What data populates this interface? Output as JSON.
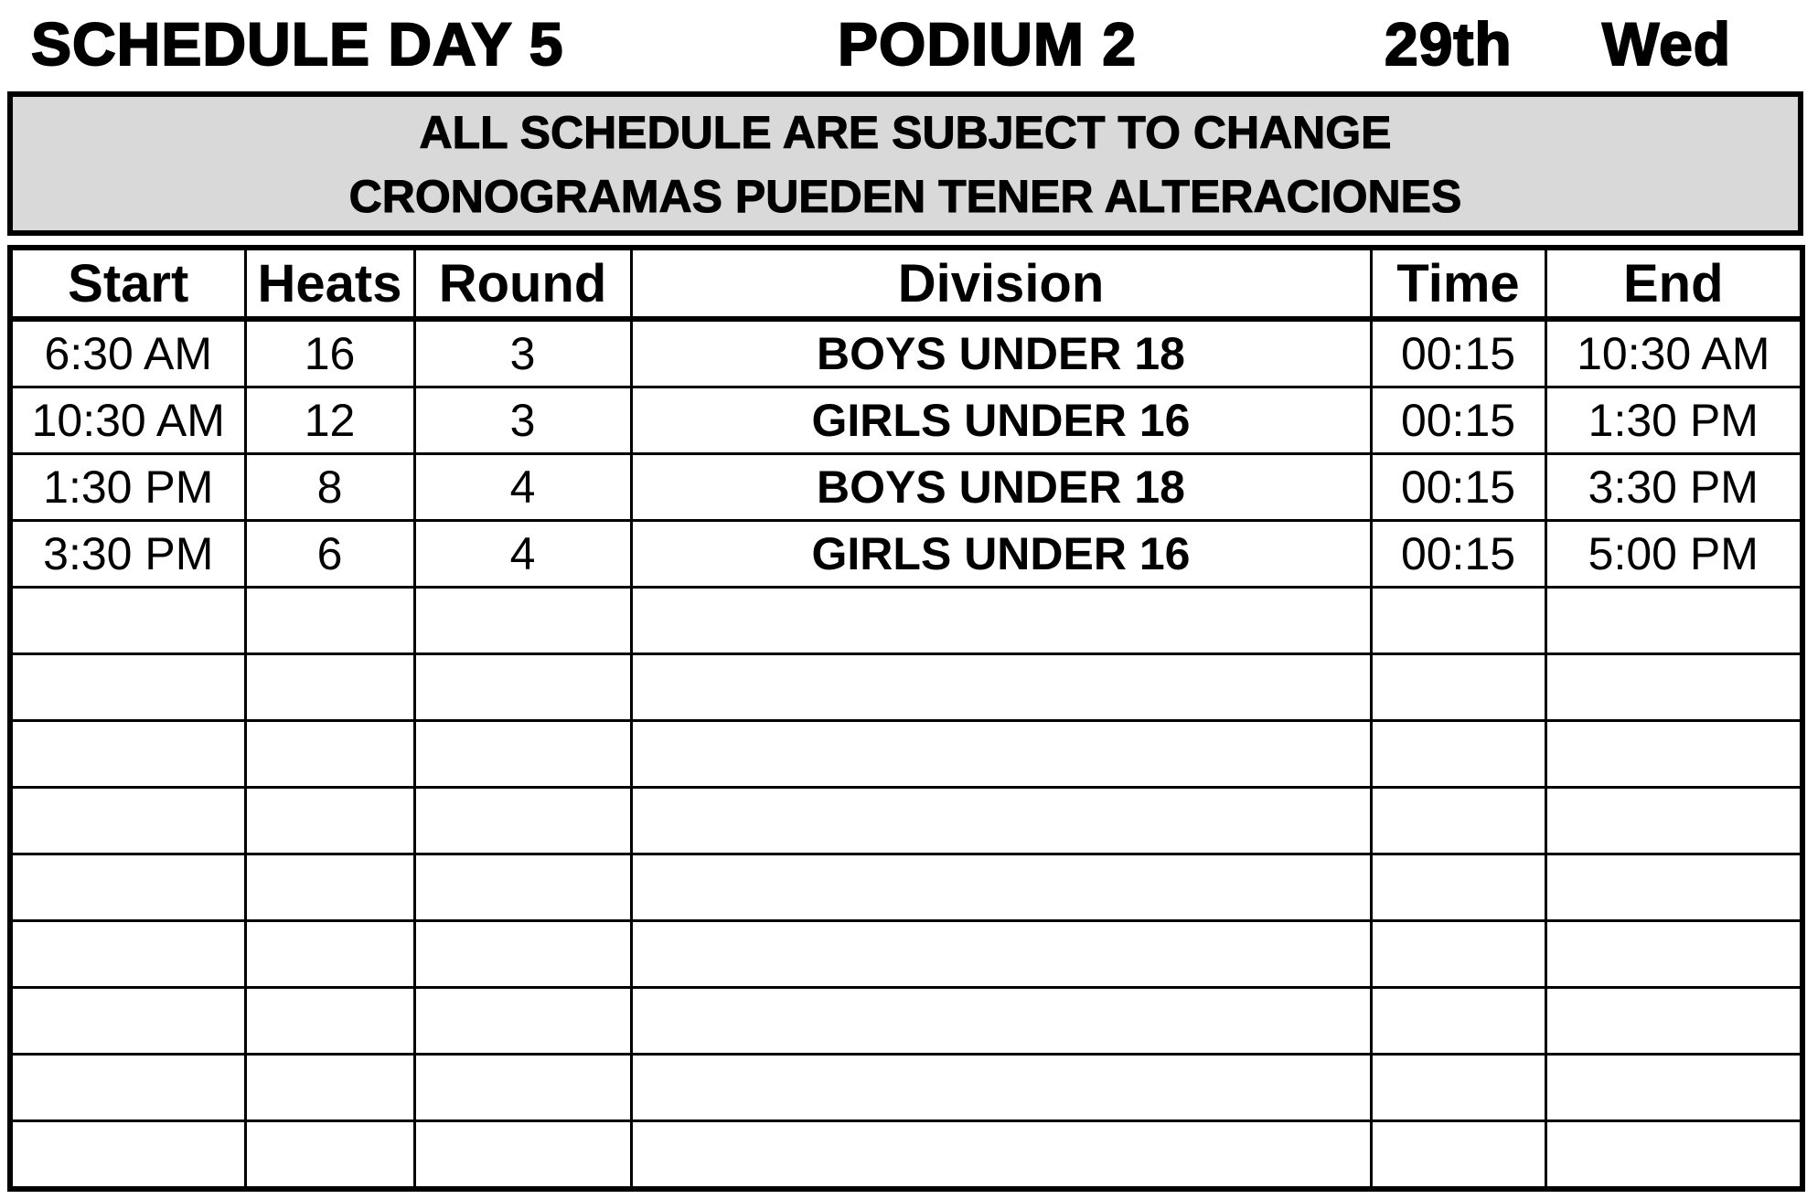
{
  "header": {
    "schedule_day": "SCHEDULE  DAY 5",
    "podium": "PODIUM 2",
    "date": "29th",
    "weekday": "Wed"
  },
  "notice": {
    "line1": "ALL SCHEDULE ARE SUBJECT TO CHANGE",
    "line2": "CRONOGRAMAS PUEDEN TENER ALTERACIONES"
  },
  "table": {
    "columns": [
      "Start",
      "Heats",
      "Round",
      "Division",
      "Time",
      "End"
    ],
    "rows": [
      [
        "6:30 AM",
        "16",
        "3",
        "BOYS UNDER 18",
        "00:15",
        "10:30 AM"
      ],
      [
        "10:30 AM",
        "12",
        "3",
        "GIRLS UNDER 16",
        "00:15",
        "1:30 PM"
      ],
      [
        "1:30 PM",
        "8",
        "4",
        "BOYS UNDER 18",
        "00:15",
        "3:30 PM"
      ],
      [
        "3:30 PM",
        "6",
        "4",
        "GIRLS UNDER 16",
        "00:15",
        "5:00 PM"
      ],
      [
        "",
        "",
        "",
        "",
        "",
        ""
      ],
      [
        "",
        "",
        "",
        "",
        "",
        ""
      ],
      [
        "",
        "",
        "",
        "",
        "",
        ""
      ],
      [
        "",
        "",
        "",
        "",
        "",
        ""
      ],
      [
        "",
        "",
        "",
        "",
        "",
        ""
      ],
      [
        "",
        "",
        "",
        "",
        "",
        ""
      ],
      [
        "",
        "",
        "",
        "",
        "",
        ""
      ],
      [
        "",
        "",
        "",
        "",
        "",
        ""
      ],
      [
        "",
        "",
        "",
        "",
        "",
        ""
      ]
    ]
  }
}
